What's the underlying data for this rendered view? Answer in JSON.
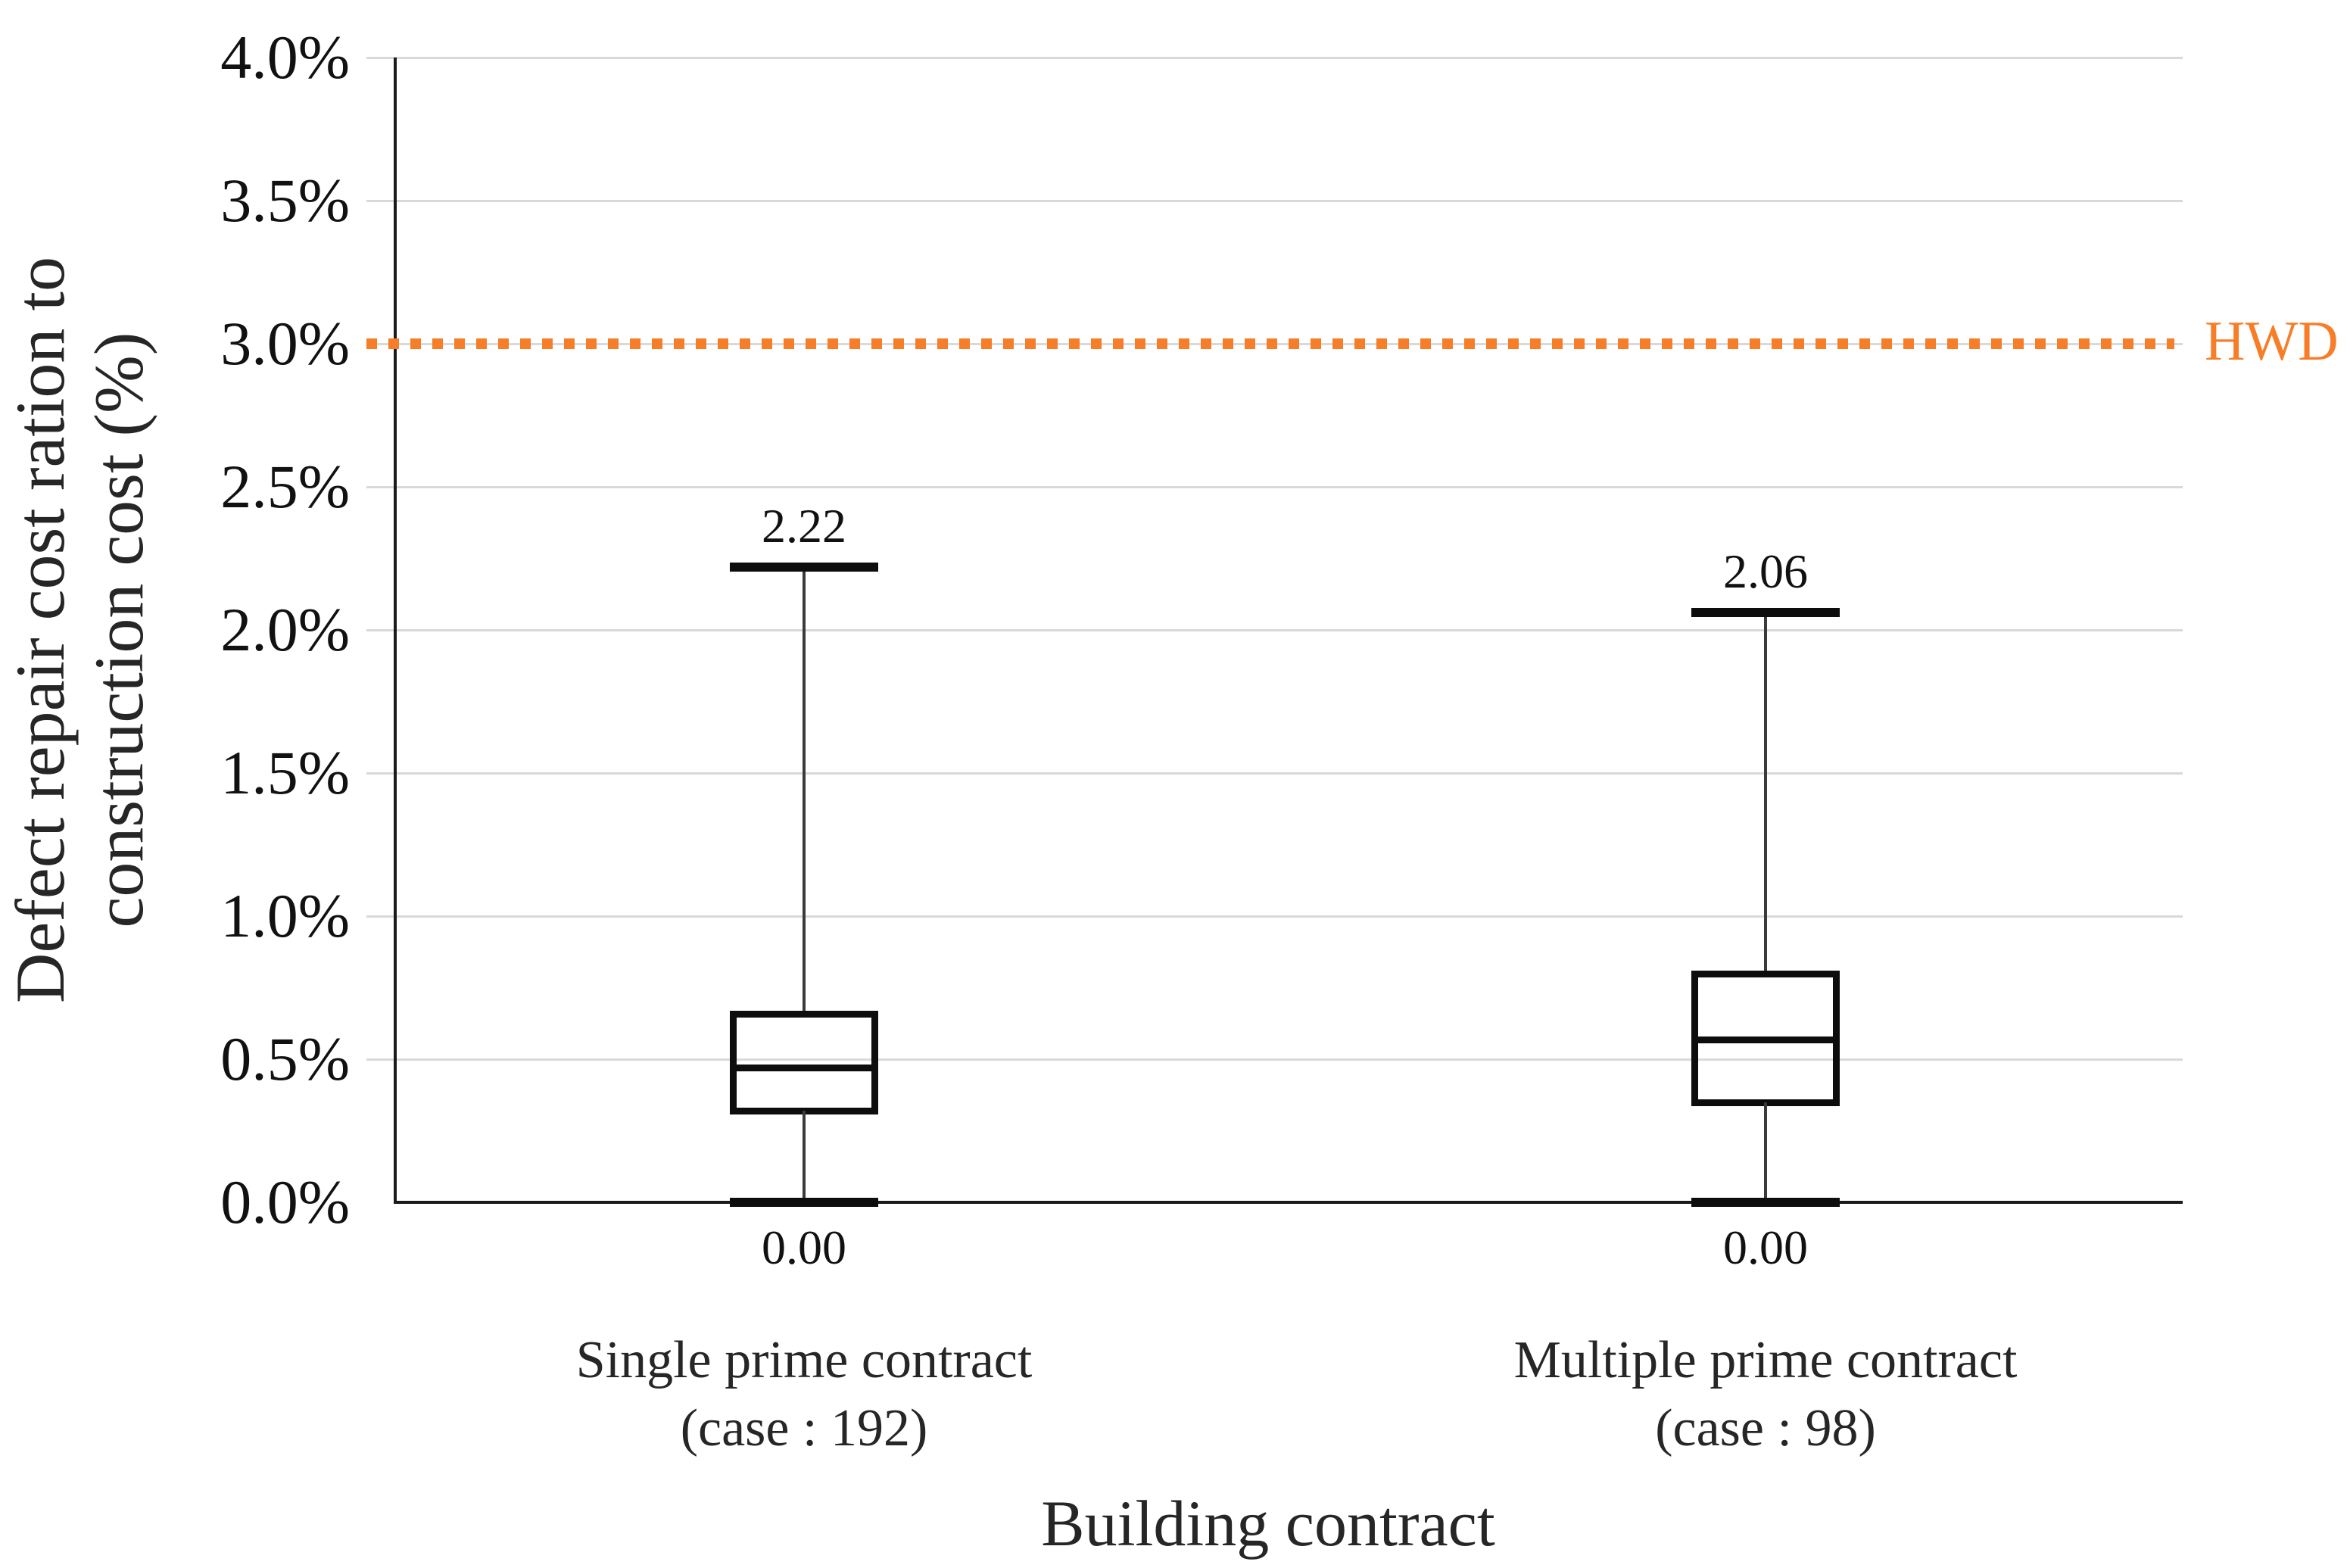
{
  "chart_data": {
    "type": "boxplot",
    "xlabel": "Building contract",
    "ylabel": "Defect repair cost ration to construction cost (%)",
    "ylabel_lines": [
      "Defect repair cost ration to",
      "construction cost (%)"
    ],
    "y_axis": {
      "min": 0.0,
      "max": 4.0,
      "step": 0.5,
      "tick_labels": [
        "4.0%",
        "3.5%",
        "3.0%",
        "2.5%",
        "2.0%",
        "1.5%",
        "1.0%",
        "0.5%",
        "0.0%"
      ],
      "grid": true
    },
    "reference_line": {
      "value": 3.0,
      "label": "HWD",
      "style": "dotted",
      "color": "#F77E29"
    },
    "groups": [
      {
        "category_line1": "Single prime contract",
        "category_line2": "(case : 192)",
        "max": 2.22,
        "q3": 0.66,
        "median": 0.47,
        "q1": 0.32,
        "min": 0.0,
        "max_label": "2.22",
        "min_label": "0.00"
      },
      {
        "category_line1": "Multiple prime contract",
        "category_line2": "(case : 98)",
        "max": 2.06,
        "q3": 0.8,
        "median": 0.57,
        "q1": 0.35,
        "min": 0.0,
        "max_label": "2.06",
        "min_label": "0.00"
      }
    ],
    "colors": {
      "grid": "#d9d9d9",
      "axis": "#1a1a1a",
      "box_stroke": "#0d0d0d",
      "reference": "#F77E29"
    }
  }
}
